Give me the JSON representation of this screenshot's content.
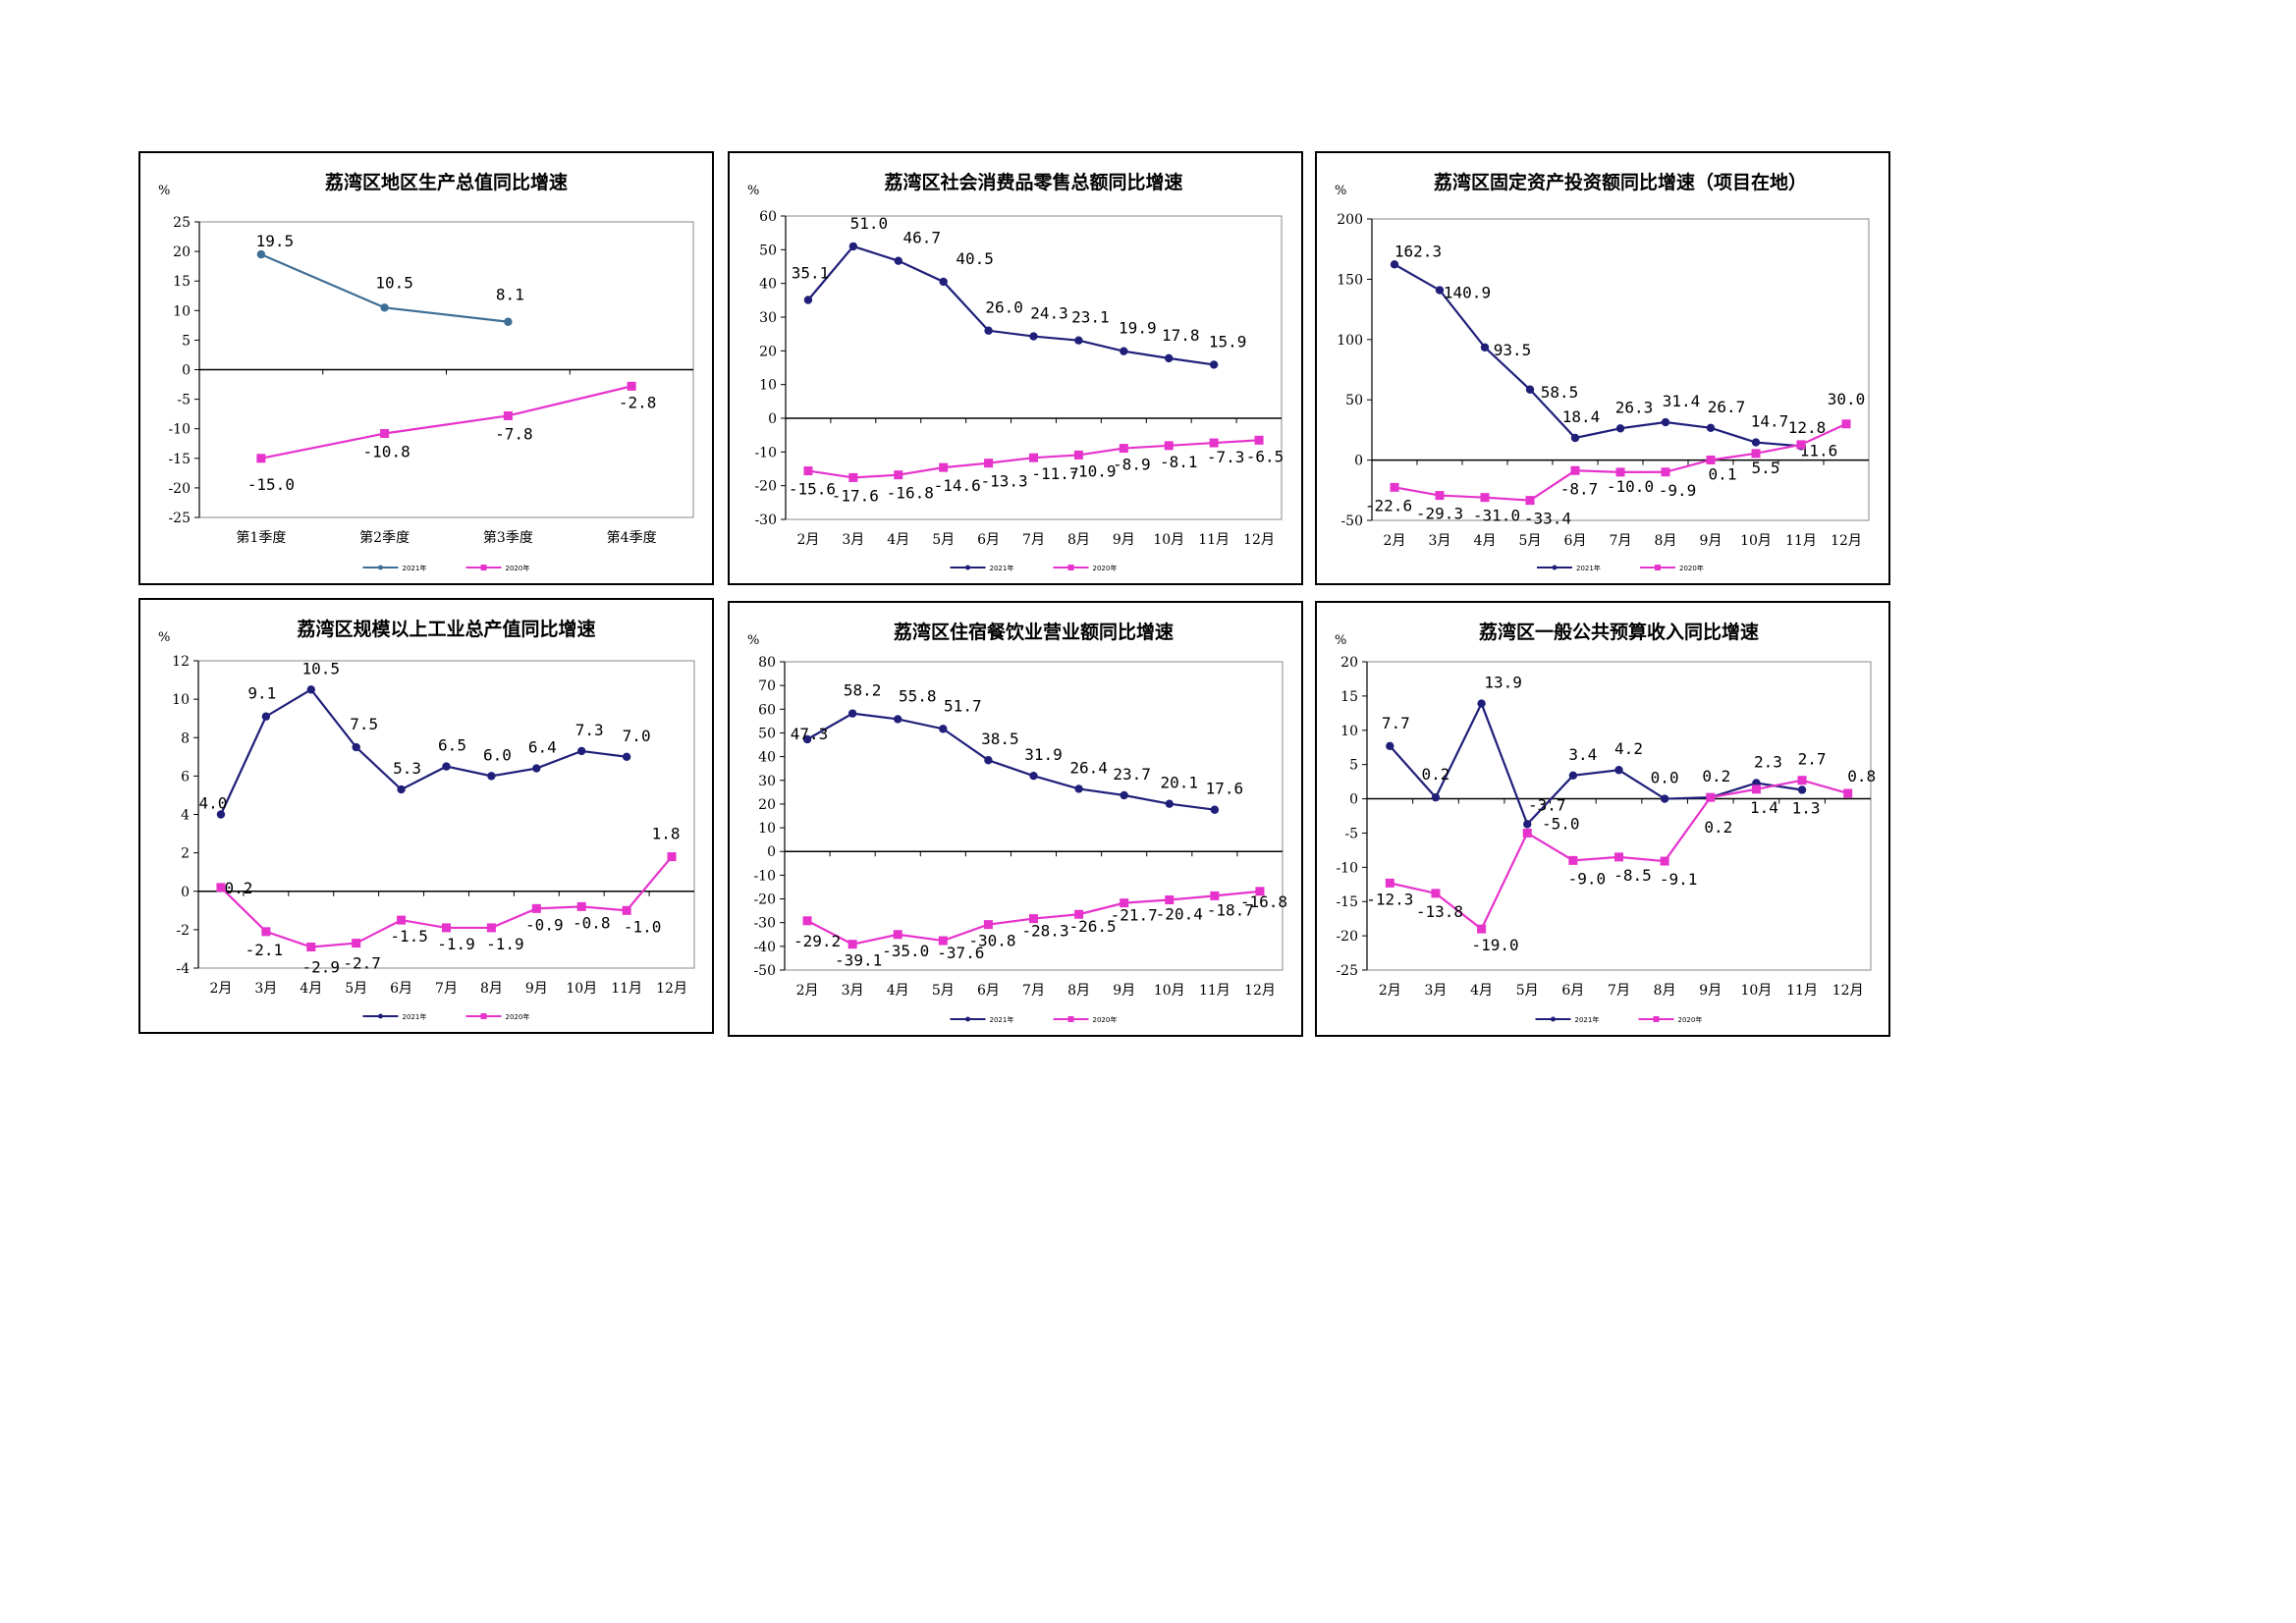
{
  "colors": {
    "s2021_q": "#3d6e96",
    "s2021": "#1f1f7a",
    "s2020": "#e633cc"
  },
  "chart_data": [
    {
      "type": "line",
      "title": "荔湾区地区生产总值同比增速",
      "unit": "%",
      "ylim": [
        -25,
        25
      ],
      "ystep": 5,
      "categories": [
        "第1季度",
        "第2季度",
        "第3季度",
        "第4季度"
      ],
      "series": [
        {
          "name": "2021年",
          "values": [
            19.5,
            10.5,
            8.1,
            null
          ],
          "labels": [
            "19.5",
            "10.5",
            "8.1",
            ""
          ]
        },
        {
          "name": "2020年",
          "values": [
            -15.0,
            -10.8,
            -7.8,
            -2.8
          ],
          "labels": [
            "-15.0",
            "-10.8",
            "-7.8",
            "-2.8"
          ]
        }
      ]
    },
    {
      "type": "line",
      "title": "荔湾区社会消费品零售总额同比增速",
      "unit": "%",
      "ylim": [
        -30,
        60
      ],
      "ystep": 10,
      "categories": [
        "2月",
        "3月",
        "4月",
        "5月",
        "6月",
        "7月",
        "8月",
        "9月",
        "10月",
        "11月",
        "12月"
      ],
      "series": [
        {
          "name": "2021年",
          "values": [
            35.1,
            51.0,
            46.7,
            40.5,
            26.0,
            24.3,
            23.1,
            19.9,
            17.8,
            15.9,
            null
          ],
          "labels": [
            "35.1",
            "51.0",
            "46.7",
            "40.5",
            "26.0",
            "24.3",
            "23.1",
            "19.9",
            "17.8",
            "15.9",
            ""
          ]
        },
        {
          "name": "2020年",
          "values": [
            -15.6,
            -17.6,
            -16.8,
            -14.6,
            -13.3,
            -11.7,
            -10.9,
            -8.9,
            -8.1,
            -7.3,
            -6.5
          ],
          "labels": [
            "-15.6",
            "-17.6",
            "-16.8",
            "-14.6",
            "-13.3",
            "-11.7",
            "-10.9",
            "-8.9",
            "-8.1",
            "-7.3",
            "-6.5"
          ]
        }
      ]
    },
    {
      "type": "line",
      "title": "荔湾区固定资产投资额同比增速（项目在地）",
      "unit": "%",
      "ylim": [
        -50,
        200
      ],
      "ystep": 50,
      "categories": [
        "2月",
        "3月",
        "4月",
        "5月",
        "6月",
        "7月",
        "8月",
        "9月",
        "10月",
        "11月",
        "12月"
      ],
      "series": [
        {
          "name": "2021年",
          "values": [
            162.3,
            140.9,
            93.5,
            58.5,
            18.4,
            26.3,
            31.4,
            26.7,
            14.7,
            11.6,
            null
          ],
          "labels": [
            "162.3",
            "140.9",
            "93.5",
            "58.5",
            "18.4",
            "26.3",
            "31.4",
            "26.7",
            "14.7",
            "11.6",
            ""
          ]
        },
        {
          "name": "2020年",
          "values": [
            -22.6,
            -29.3,
            -31.0,
            -33.4,
            -8.7,
            -10.0,
            -9.9,
            0.1,
            5.5,
            12.8,
            30.0
          ],
          "labels": [
            "-22.6",
            "-29.3",
            "-31.0",
            "-33.4",
            "-8.7",
            "-10.0",
            "-9.9",
            "0.1",
            "5.5",
            "12.8",
            "30.0"
          ]
        }
      ]
    },
    {
      "type": "line",
      "title": "荔湾区规模以上工业总产值同比增速",
      "unit": "%",
      "ylim": [
        -4,
        12
      ],
      "ystep": 2,
      "categories": [
        "2月",
        "3月",
        "4月",
        "5月",
        "6月",
        "7月",
        "8月",
        "9月",
        "10月",
        "11月",
        "12月"
      ],
      "series": [
        {
          "name": "2021年",
          "values": [
            4.0,
            9.1,
            10.5,
            7.5,
            5.3,
            6.5,
            6.0,
            6.4,
            7.3,
            7.0,
            null
          ],
          "labels": [
            "4.0",
            "9.1",
            "10.5",
            "7.5",
            "5.3",
            "6.5",
            "6.0",
            "6.4",
            "7.3",
            "7.0",
            ""
          ]
        },
        {
          "name": "2020年",
          "values": [
            0.2,
            -2.1,
            -2.9,
            -2.7,
            -1.5,
            -1.9,
            -1.9,
            -0.9,
            -0.8,
            -1.0,
            1.8
          ],
          "labels": [
            "0.2",
            "-2.1",
            "-2.9",
            "-2.7",
            "-1.5",
            "-1.9",
            "-1.9",
            "-0.9",
            "-0.8",
            "-1.0",
            "1.8"
          ]
        }
      ]
    },
    {
      "type": "line",
      "title": "荔湾区住宿餐饮业营业额同比增速",
      "unit": "%",
      "ylim": [
        -50,
        80
      ],
      "ystep": 10,
      "categories": [
        "2月",
        "3月",
        "4月",
        "5月",
        "6月",
        "7月",
        "8月",
        "9月",
        "10月",
        "11月",
        "12月"
      ],
      "series": [
        {
          "name": "2021年",
          "values": [
            47.3,
            58.2,
            55.8,
            51.7,
            38.5,
            31.9,
            26.4,
            23.7,
            20.1,
            17.6,
            null
          ],
          "labels": [
            "47.3",
            "58.2",
            "55.8",
            "51.7",
            "38.5",
            "31.9",
            "26.4",
            "23.7",
            "20.1",
            "17.6",
            ""
          ]
        },
        {
          "name": "2020年",
          "values": [
            -29.2,
            -39.1,
            -35.0,
            -37.6,
            -30.8,
            -28.3,
            -26.5,
            -21.7,
            -20.4,
            -18.7,
            -16.8
          ],
          "labels": [
            "-29.2",
            "-39.1",
            "-35.0",
            "-37.6",
            "-30.8",
            "-28.3",
            "-26.5",
            "-21.7",
            "-20.4",
            "-18.7",
            "-16.8"
          ]
        }
      ]
    },
    {
      "type": "line",
      "title": "荔湾区一般公共预算收入同比增速",
      "unit": "%",
      "ylim": [
        -25,
        20
      ],
      "ystep": 5,
      "categories": [
        "2月",
        "3月",
        "4月",
        "5月",
        "6月",
        "7月",
        "8月",
        "9月",
        "10月",
        "11月",
        "12月"
      ],
      "series": [
        {
          "name": "2021年",
          "values": [
            7.7,
            0.2,
            13.9,
            -3.7,
            3.4,
            4.2,
            0.0,
            0.2,
            2.3,
            1.3,
            null
          ],
          "labels": [
            "7.7",
            "0.2",
            "13.9",
            "-3.7",
            "3.4",
            "4.2",
            "0.0",
            "0.2",
            "2.3",
            "1.3",
            ""
          ]
        },
        {
          "name": "2020年",
          "values": [
            -12.3,
            -13.8,
            -19.0,
            -5.0,
            -9.0,
            -8.5,
            -9.1,
            0.2,
            1.4,
            2.7,
            0.8
          ],
          "labels": [
            "-12.3",
            "-13.8",
            "-19.0",
            "-5.0",
            "-9.0",
            "-8.5",
            "-9.1",
            "0.2",
            "1.4",
            "2.7",
            "0.8"
          ]
        }
      ]
    }
  ]
}
